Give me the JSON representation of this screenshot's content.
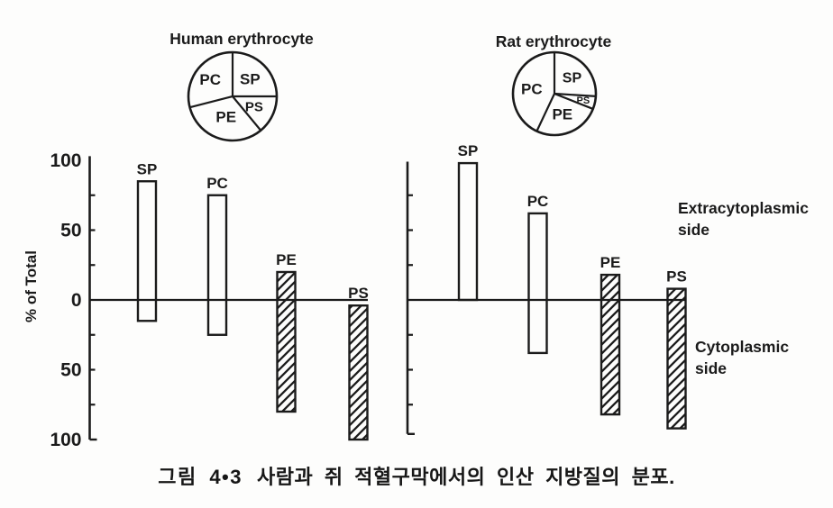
{
  "figure": {
    "caption_prefix": "그림 4•3",
    "caption_text": "사람과 쥐 적혈구막에서의 인산 지방질의 분포.",
    "side_labels": {
      "extracytoplasmic": [
        "Extracytoplasmic",
        "side"
      ],
      "cytoplasmic": [
        "Cytoplasmic",
        "side"
      ]
    },
    "ink_color": "#1b1b1b",
    "paper_color": "#fdfdfc"
  },
  "chart_data": [
    {
      "id": "human-pie",
      "type": "pie",
      "title": "Human erythrocyte",
      "unit": "%",
      "start_angle_deg": 0,
      "direction": "clockwise",
      "slices": [
        {
          "label": "SP",
          "value": 25
        },
        {
          "label": "PS",
          "value": 14
        },
        {
          "label": "PE",
          "value": 32
        },
        {
          "label": "PC",
          "value": 29
        }
      ]
    },
    {
      "id": "rat-pie",
      "type": "pie",
      "title": "Rat erythrocyte",
      "unit": "%",
      "start_angle_deg": 0,
      "direction": "clockwise",
      "slices": [
        {
          "label": "SP",
          "value": 26
        },
        {
          "label": "PS",
          "value": 5
        },
        {
          "label": "PE",
          "value": 26
        },
        {
          "label": "PC",
          "value": 43
        }
      ]
    },
    {
      "id": "human-bars",
      "type": "bar",
      "group": "Human erythrocyte",
      "ylabel": "% of Total",
      "ylim": [
        -100,
        100
      ],
      "axis_tick_labels": [
        "100",
        "50",
        "0",
        "50",
        "100"
      ],
      "positive_side": "Extracytoplasmic side",
      "negative_side": "Cytoplasmic side",
      "bars": [
        {
          "label": "SP",
          "top": 85,
          "bottom": -15,
          "hatched": false
        },
        {
          "label": "PC",
          "top": 75,
          "bottom": -25,
          "hatched": false
        },
        {
          "label": "PE",
          "top": 20,
          "bottom": -80,
          "hatched": true
        },
        {
          "label": "PS",
          "top": -4,
          "bottom": -100,
          "hatched": true
        }
      ]
    },
    {
      "id": "rat-bars",
      "type": "bar",
      "group": "Rat erythrocyte",
      "ylim": [
        -100,
        100
      ],
      "positive_side": "Extracytoplasmic side",
      "negative_side": "Cytoplasmic side",
      "bars": [
        {
          "label": "SP",
          "top": 98,
          "bottom": 0,
          "hatched": false
        },
        {
          "label": "PC",
          "top": 62,
          "bottom": -38,
          "hatched": false
        },
        {
          "label": "PE",
          "top": 18,
          "bottom": -82,
          "hatched": true
        },
        {
          "label": "PS",
          "top": 8,
          "bottom": -92,
          "hatched": true
        }
      ]
    }
  ]
}
